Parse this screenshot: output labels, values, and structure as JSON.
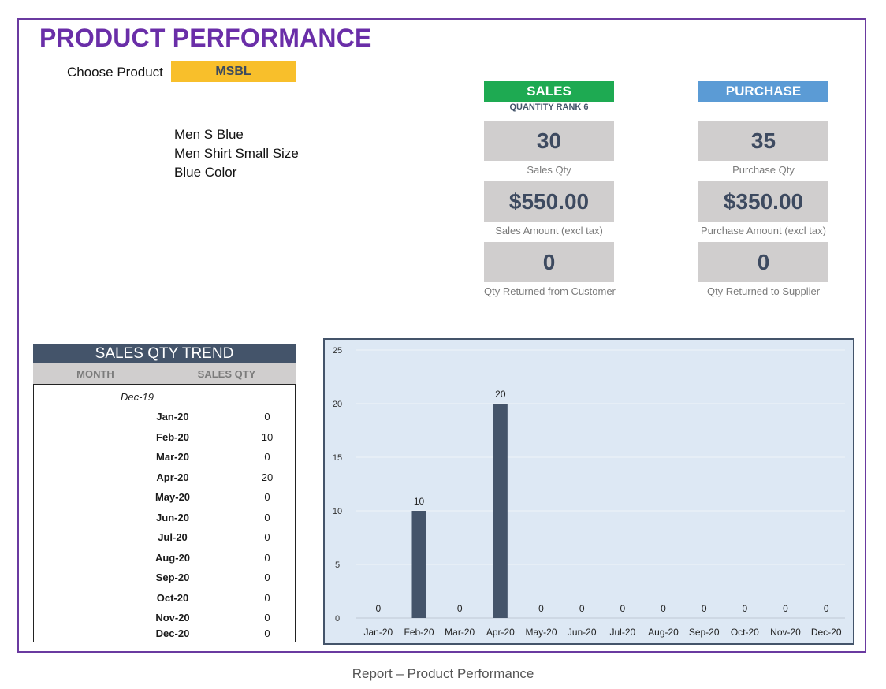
{
  "report": {
    "title": "PRODUCT PERFORMANCE",
    "caption": "Report – Product Performance"
  },
  "product": {
    "choose_label": "Choose Product",
    "selected": "MSBL",
    "description": [
      "Men S Blue",
      "Men Shirt Small Size",
      "Blue Color"
    ]
  },
  "sales": {
    "header": "SALES",
    "rank_text": "QUANTITY RANK 6",
    "qty": "30",
    "qty_label": "Sales Qty",
    "amount": "$550.00",
    "amount_label": "Sales Amount (excl tax)",
    "returned": "0",
    "returned_label": "Qty Returned from Customer"
  },
  "purchase": {
    "header": "PURCHASE",
    "qty": "35",
    "qty_label": "Purchase Qty",
    "amount": "$350.00",
    "amount_label": "Purchase Amount (excl tax)",
    "returned": "0",
    "returned_label": "Qty Returned to Supplier"
  },
  "trend": {
    "title": "SALES QTY TREND",
    "col_month": "MONTH",
    "col_qty": "SALES QTY",
    "start_month": "Dec-19",
    "rows": [
      {
        "month": "Jan-20",
        "qty": "0"
      },
      {
        "month": "Feb-20",
        "qty": "10"
      },
      {
        "month": "Mar-20",
        "qty": "0"
      },
      {
        "month": "Apr-20",
        "qty": "20"
      },
      {
        "month": "May-20",
        "qty": "0"
      },
      {
        "month": "Jun-20",
        "qty": "0"
      },
      {
        "month": "Jul-20",
        "qty": "0"
      },
      {
        "month": "Aug-20",
        "qty": "0"
      },
      {
        "month": "Sep-20",
        "qty": "0"
      },
      {
        "month": "Oct-20",
        "qty": "0"
      },
      {
        "month": "Nov-20",
        "qty": "0"
      },
      {
        "month": "Dec-20",
        "qty": "0"
      }
    ]
  },
  "colors": {
    "title": "#6a2ea8",
    "select": "#f8bf2b",
    "sales_header": "#1eaa52",
    "purchase_header": "#5b9bd5",
    "kpi_bg": "#d0cece",
    "dark_navy": "#44546a",
    "chart_bg": "#dde8f4"
  },
  "chart_data": {
    "type": "bar",
    "categories": [
      "Jan-20",
      "Feb-20",
      "Mar-20",
      "Apr-20",
      "May-20",
      "Jun-20",
      "Jul-20",
      "Aug-20",
      "Sep-20",
      "Oct-20",
      "Nov-20",
      "Dec-20"
    ],
    "values": [
      0,
      10,
      0,
      20,
      0,
      0,
      0,
      0,
      0,
      0,
      0,
      0
    ],
    "ylim": [
      0,
      25
    ],
    "yticks": [
      0,
      5,
      10,
      15,
      20,
      25
    ],
    "data_labels": true,
    "grid": true,
    "bar_color": "#44546a",
    "title": "",
    "xlabel": "",
    "ylabel": ""
  }
}
